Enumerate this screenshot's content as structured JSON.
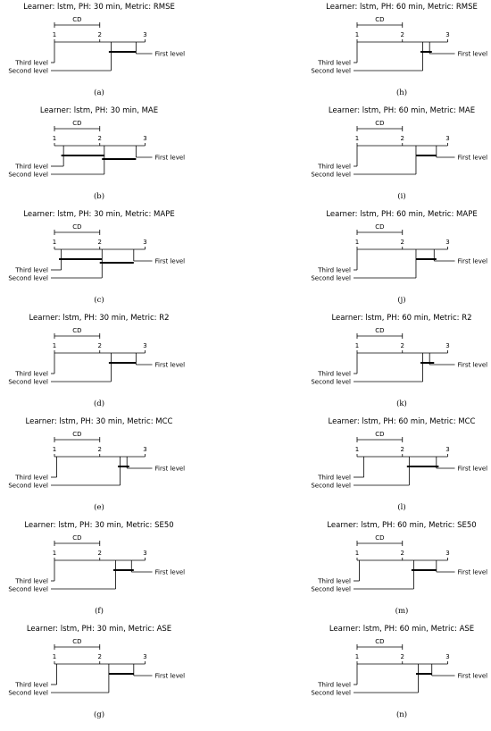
{
  "chart_data": [
    {
      "id": "a",
      "letter": "(a)",
      "type": "critical-difference",
      "title": "Learner: lstm, PH: 30 min, Metric: RMSE",
      "cd_label": "CD",
      "cd": 1.0,
      "ticks": [
        "1",
        "2",
        "3"
      ],
      "xlim": [
        1,
        3
      ],
      "levels": [
        {
          "name": "First level",
          "rank": 2.8
        },
        {
          "name": "Third level",
          "rank": 1.0
        },
        {
          "name": "Second level",
          "rank": 2.25
        }
      ],
      "cliques": [
        [
          2.2,
          2.8
        ]
      ]
    },
    {
      "id": "h",
      "letter": "(h)",
      "type": "critical-difference",
      "title": "Learner: lstm, PH: 60 min, Metric: RMSE",
      "cd_label": "CD",
      "cd": 1.0,
      "ticks": [
        "1",
        "2",
        "3"
      ],
      "xlim": [
        1,
        3
      ],
      "levels": [
        {
          "name": "First level",
          "rank": 2.6
        },
        {
          "name": "Third level",
          "rank": 1.0
        },
        {
          "name": "Second level",
          "rank": 2.45
        }
      ],
      "cliques": [
        [
          2.4,
          2.65
        ]
      ]
    },
    {
      "id": "b",
      "letter": "(b)",
      "type": "critical-difference",
      "title": "Learner: lstm, PH: 30 min, MAE",
      "cd_label": "CD",
      "cd": 1.0,
      "ticks": [
        "1",
        "2",
        "3"
      ],
      "xlim": [
        1,
        3
      ],
      "levels": [
        {
          "name": "First level",
          "rank": 2.8
        },
        {
          "name": "Third level",
          "rank": 1.2
        },
        {
          "name": "Second level",
          "rank": 2.1
        }
      ],
      "cliques": [
        [
          1.15,
          2.1
        ],
        [
          2.05,
          2.8
        ]
      ]
    },
    {
      "id": "i",
      "letter": "(i)",
      "type": "critical-difference",
      "title": "Learner: lstm, PH: 60 min, Metric: MAE",
      "cd_label": "CD",
      "cd": 1.0,
      "ticks": [
        "1",
        "2",
        "3"
      ],
      "xlim": [
        1,
        3
      ],
      "levels": [
        {
          "name": "First level",
          "rank": 2.75
        },
        {
          "name": "Third level",
          "rank": 1.0
        },
        {
          "name": "Second level",
          "rank": 2.3
        }
      ],
      "cliques": [
        [
          2.3,
          2.75
        ]
      ]
    },
    {
      "id": "c",
      "letter": "(c)",
      "type": "critical-difference",
      "title": "Learner: lstm, PH: 30 min, Metric: MAPE",
      "cd_label": "CD",
      "cd": 1.0,
      "ticks": [
        "1",
        "2",
        "3"
      ],
      "xlim": [
        1,
        3
      ],
      "levels": [
        {
          "name": "First level",
          "rank": 2.75
        },
        {
          "name": "Third level",
          "rank": 1.15
        },
        {
          "name": "Second level",
          "rank": 2.05
        }
      ],
      "cliques": [
        [
          1.1,
          2.05
        ],
        [
          2.0,
          2.75
        ]
      ]
    },
    {
      "id": "j",
      "letter": "(j)",
      "type": "critical-difference",
      "title": "Learner: lstm, PH: 60 min, Metric: MAPE",
      "cd_label": "CD",
      "cd": 1.0,
      "ticks": [
        "1",
        "2",
        "3"
      ],
      "xlim": [
        1,
        3
      ],
      "levels": [
        {
          "name": "First level",
          "rank": 2.7
        },
        {
          "name": "Third level",
          "rank": 1.0
        },
        {
          "name": "Second level",
          "rank": 2.3
        }
      ],
      "cliques": [
        [
          2.3,
          2.75
        ]
      ]
    },
    {
      "id": "d",
      "letter": "(d)",
      "type": "critical-difference",
      "title": "Learner: lstm, PH: 30 min, Metric: R2",
      "cd_label": "CD",
      "cd": 1.0,
      "ticks": [
        "1",
        "2",
        "3"
      ],
      "xlim": [
        1,
        3
      ],
      "levels": [
        {
          "name": "First level",
          "rank": 2.8
        },
        {
          "name": "Third level",
          "rank": 1.0
        },
        {
          "name": "Second level",
          "rank": 2.25
        }
      ],
      "cliques": [
        [
          2.2,
          2.8
        ]
      ]
    },
    {
      "id": "k",
      "letter": "(k)",
      "type": "critical-difference",
      "title": "Learner: lstm, PH: 60 min, Metric: R2",
      "cd_label": "CD",
      "cd": 1.0,
      "ticks": [
        "1",
        "2",
        "3"
      ],
      "xlim": [
        1,
        3
      ],
      "levels": [
        {
          "name": "First level",
          "rank": 2.6
        },
        {
          "name": "Third level",
          "rank": 1.0
        },
        {
          "name": "Second level",
          "rank": 2.45
        }
      ],
      "cliques": [
        [
          2.4,
          2.7
        ]
      ]
    },
    {
      "id": "e",
      "letter": "(e)",
      "type": "critical-difference",
      "title": "Learner: lstm, PH: 30 min, Metric: MCC",
      "cd_label": "CD",
      "cd": 1.0,
      "ticks": [
        "1",
        "2",
        "3"
      ],
      "xlim": [
        1,
        3
      ],
      "levels": [
        {
          "name": "First level",
          "rank": 2.6
        },
        {
          "name": "Third level",
          "rank": 1.05
        },
        {
          "name": "Second level",
          "rank": 2.45
        }
      ],
      "cliques": [
        [
          2.4,
          2.65
        ]
      ]
    },
    {
      "id": "l",
      "letter": "(l)",
      "type": "critical-difference",
      "title": "Learner: lstm, PH: 60 min, Metric: MCC",
      "cd_label": "CD",
      "cd": 1.0,
      "ticks": [
        "1",
        "2",
        "3"
      ],
      "xlim": [
        1,
        3
      ],
      "levels": [
        {
          "name": "First level",
          "rank": 2.75
        },
        {
          "name": "Third level",
          "rank": 1.15
        },
        {
          "name": "Second level",
          "rank": 2.15
        }
      ],
      "cliques": [
        [
          2.1,
          2.8
        ]
      ]
    },
    {
      "id": "f",
      "letter": "(f)",
      "type": "critical-difference",
      "title": "Learner: lstm, PH: 30 min, Metric: SE50",
      "cd_label": "CD",
      "cd": 1.0,
      "ticks": [
        "1",
        "2",
        "3"
      ],
      "xlim": [
        1,
        3
      ],
      "levels": [
        {
          "name": "First level",
          "rank": 2.7
        },
        {
          "name": "Third level",
          "rank": 1.0
        },
        {
          "name": "Second level",
          "rank": 2.35
        }
      ],
      "cliques": [
        [
          2.3,
          2.75
        ]
      ]
    },
    {
      "id": "m",
      "letter": "(m)",
      "type": "critical-difference",
      "title": "Learner: lstm, PH: 60 min, Metric: SE50",
      "cd_label": "CD",
      "cd": 1.0,
      "ticks": [
        "1",
        "2",
        "3"
      ],
      "xlim": [
        1,
        3
      ],
      "levels": [
        {
          "name": "First level",
          "rank": 2.75
        },
        {
          "name": "Third level",
          "rank": 1.05
        },
        {
          "name": "Second level",
          "rank": 2.25
        }
      ],
      "cliques": [
        [
          2.2,
          2.75
        ]
      ]
    },
    {
      "id": "g",
      "letter": "(g)",
      "type": "critical-difference",
      "title": "Learner: lstm, PH: 30 min, Metric: ASE",
      "cd_label": "CD",
      "cd": 1.0,
      "ticks": [
        "1",
        "2",
        "3"
      ],
      "xlim": [
        1,
        3
      ],
      "levels": [
        {
          "name": "First level",
          "rank": 2.75
        },
        {
          "name": "Third level",
          "rank": 1.05
        },
        {
          "name": "Second level",
          "rank": 2.2
        }
      ],
      "cliques": [
        [
          2.2,
          2.75
        ]
      ]
    },
    {
      "id": "n",
      "letter": "(n)",
      "type": "critical-difference",
      "title": "Learner: lstm, PH: 60 min, Metric: ASE",
      "cd_label": "CD",
      "cd": 1.0,
      "ticks": [
        "1",
        "2",
        "3"
      ],
      "xlim": [
        1,
        3
      ],
      "levels": [
        {
          "name": "First level",
          "rank": 2.65
        },
        {
          "name": "Third level",
          "rank": 1.0
        },
        {
          "name": "Second level",
          "rank": 2.35
        }
      ],
      "cliques": [
        [
          2.3,
          2.65
        ]
      ]
    }
  ]
}
